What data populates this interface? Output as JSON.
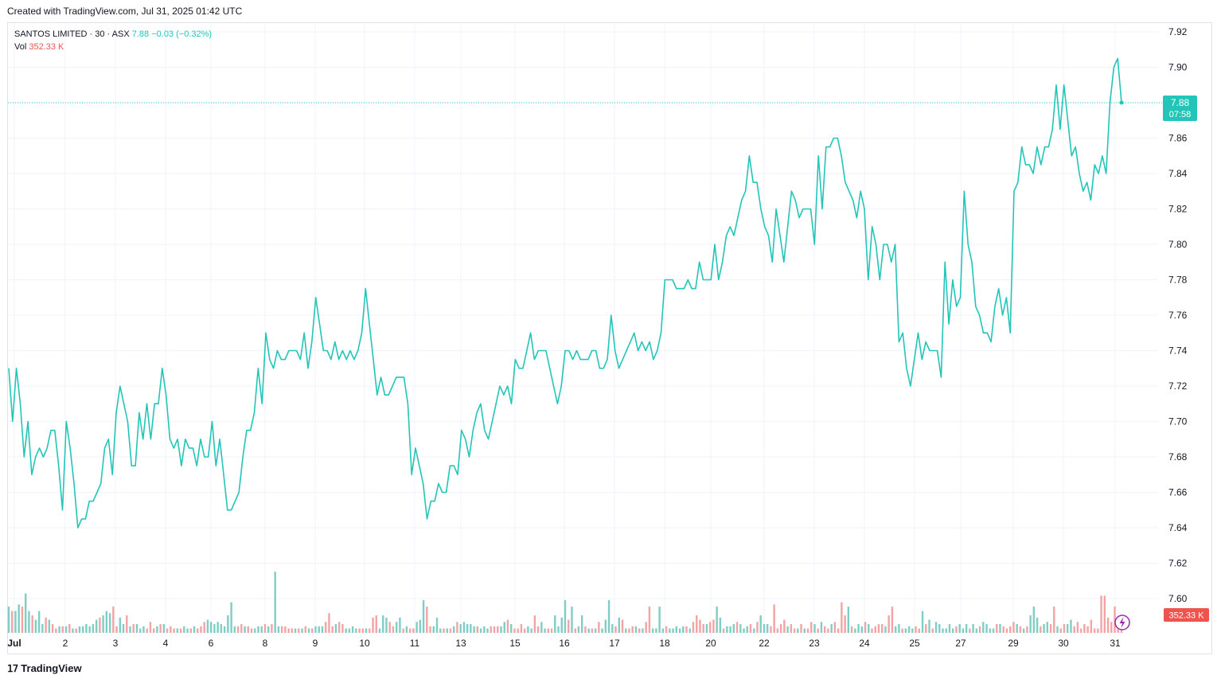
{
  "caption": "Created with TradingView.com, Jul 31, 2025 01:42 UTC",
  "legend": {
    "symbol": "SANTOS LIMITED · 30 · ASX",
    "last": "7.88",
    "change": "−0.03 (−0.32%)",
    "vol_label": "Vol",
    "vol_value": "352.33 K"
  },
  "price_badge": {
    "price": "7.88",
    "countdown": "07:58"
  },
  "vol_badge": "352.33 K",
  "footer": {
    "brand": "TradingView"
  },
  "colors": {
    "line": "#22c5b8",
    "vol_up": "#7fcdc4",
    "vol_down": "#f3a3a3",
    "grid": "#f0f3fa",
    "badge_vol": "#ef5350"
  },
  "chart_data": {
    "type": "line",
    "title": "SANTOS LIMITED · 30 · ASX",
    "ylim": [
      7.585,
      7.925
    ],
    "y_ticks": [
      "7.60",
      "7.62",
      "7.64",
      "7.66",
      "7.68",
      "7.70",
      "7.72",
      "7.74",
      "7.76",
      "7.78",
      "7.80",
      "7.82",
      "7.84",
      "7.86",
      "7.88",
      "7.90",
      "7.92"
    ],
    "x_labels": [
      "Jul",
      "2",
      "3",
      "4",
      "6",
      "8",
      "9",
      "10",
      "11",
      "13",
      "15",
      "16",
      "17",
      "18",
      "20",
      "22",
      "23",
      "24",
      "25",
      "27",
      "29",
      "30",
      "31"
    ],
    "last_price": 7.88,
    "series": [
      {
        "values": [
          7.73,
          7.7,
          7.73,
          7.71,
          7.68,
          7.7,
          7.67,
          7.68,
          7.685,
          7.68,
          7.685,
          7.695,
          7.695,
          7.675,
          7.65,
          7.7,
          7.685,
          7.665,
          7.64,
          7.645,
          7.645,
          7.655,
          7.655,
          7.66,
          7.665,
          7.685,
          7.69,
          7.67,
          7.705,
          7.72,
          7.71,
          7.7,
          7.675,
          7.675,
          7.705,
          7.69,
          7.71,
          7.69,
          7.71,
          7.71,
          7.73,
          7.715,
          7.69,
          7.685,
          7.69,
          7.675,
          7.69,
          7.685,
          7.685,
          7.675,
          7.69,
          7.68,
          7.68,
          7.7,
          7.675,
          7.69,
          7.67,
          7.65,
          7.65,
          7.655,
          7.66,
          7.68,
          7.695,
          7.695,
          7.705,
          7.73,
          7.71,
          7.75,
          7.735,
          7.73,
          7.74,
          7.735,
          7.735,
          7.74,
          7.74,
          7.74,
          7.735,
          7.75,
          7.73,
          7.745,
          7.77,
          7.755,
          7.74,
          7.74,
          7.735,
          7.745,
          7.735,
          7.74,
          7.735,
          7.74,
          7.735,
          7.74,
          7.75,
          7.775,
          7.755,
          7.735,
          7.715,
          7.725,
          7.715,
          7.715,
          7.72,
          7.725,
          7.725,
          7.725,
          7.71,
          7.67,
          7.685,
          7.675,
          7.665,
          7.645,
          7.655,
          7.655,
          7.665,
          7.66,
          7.66,
          7.675,
          7.675,
          7.67,
          7.695,
          7.69,
          7.68,
          7.695,
          7.705,
          7.71,
          7.695,
          7.69,
          7.7,
          7.71,
          7.72,
          7.715,
          7.72,
          7.71,
          7.735,
          7.73,
          7.73,
          7.74,
          7.75,
          7.735,
          7.74,
          7.74,
          7.74,
          7.73,
          7.72,
          7.71,
          7.72,
          7.74,
          7.74,
          7.735,
          7.74,
          7.735,
          7.735,
          7.735,
          7.74,
          7.74,
          7.73,
          7.73,
          7.735,
          7.76,
          7.74,
          7.73,
          7.735,
          7.74,
          7.745,
          7.75,
          7.74,
          7.745,
          7.74,
          7.745,
          7.735,
          7.74,
          7.75,
          7.78,
          7.78,
          7.78,
          7.775,
          7.775,
          7.775,
          7.78,
          7.775,
          7.775,
          7.79,
          7.78,
          7.78,
          7.78,
          7.8,
          7.78,
          7.79,
          7.805,
          7.81,
          7.805,
          7.815,
          7.825,
          7.83,
          7.85,
          7.835,
          7.835,
          7.82,
          7.81,
          7.805,
          7.79,
          7.82,
          7.805,
          7.79,
          7.81,
          7.83,
          7.825,
          7.815,
          7.82,
          7.82,
          7.82,
          7.8,
          7.85,
          7.82,
          7.855,
          7.855,
          7.86,
          7.86,
          7.85,
          7.835,
          7.83,
          7.825,
          7.815,
          7.83,
          7.82,
          7.78,
          7.81,
          7.8,
          7.78,
          7.8,
          7.8,
          7.79,
          7.8,
          7.745,
          7.75,
          7.73,
          7.72,
          7.735,
          7.75,
          7.735,
          7.745,
          7.74,
          7.74,
          7.74,
          7.725,
          7.79,
          7.755,
          7.78,
          7.765,
          7.77,
          7.83,
          7.8,
          7.79,
          7.765,
          7.76,
          7.75,
          7.75,
          7.745,
          7.765,
          7.775,
          7.76,
          7.77,
          7.75,
          7.83,
          7.835,
          7.855,
          7.845,
          7.845,
          7.84,
          7.855,
          7.845,
          7.855,
          7.855,
          7.865,
          7.89,
          7.865,
          7.89,
          7.87,
          7.85,
          7.855,
          7.84,
          7.83,
          7.835,
          7.825,
          7.845,
          7.84,
          7.85,
          7.84,
          7.88,
          7.9,
          7.905,
          7.88
        ]
      }
    ],
    "volume": {
      "ylim": [
        0,
        70
      ],
      "values": [
        12,
        10,
        10,
        13,
        12,
        18,
        10,
        8,
        6,
        10,
        4,
        7,
        6,
        4,
        2,
        3,
        3,
        3,
        4,
        2,
        2,
        3,
        3,
        4,
        3,
        4,
        6,
        7,
        8,
        10,
        9,
        12,
        3,
        7,
        4,
        8,
        3,
        4,
        4,
        2,
        3,
        2,
        5,
        2,
        3,
        4,
        4,
        2,
        3,
        2,
        2,
        2,
        3,
        2,
        2,
        3,
        2,
        3,
        5,
        6,
        5,
        4,
        5,
        4,
        3,
        8,
        14,
        3,
        3,
        4,
        3,
        3,
        2,
        2,
        3,
        3,
        4,
        3,
        4,
        28,
        3,
        3,
        3,
        2,
        2,
        2,
        2,
        2,
        3,
        2,
        2,
        3,
        3,
        3,
        5,
        9,
        3,
        4,
        5,
        4,
        2,
        2,
        3,
        2,
        2,
        2,
        2,
        2,
        7,
        8,
        2,
        8,
        7,
        5,
        3,
        5,
        7,
        2,
        3,
        2,
        2,
        5,
        6,
        15,
        12,
        3,
        3,
        7,
        2,
        2,
        2,
        2,
        3,
        5,
        4,
        5,
        4,
        4,
        3,
        3,
        2,
        3,
        2,
        3,
        3,
        3,
        3,
        5,
        6,
        4,
        2,
        2,
        4,
        2,
        3,
        2,
        8,
        3,
        5,
        2,
        2,
        2,
        8,
        3,
        7,
        15,
        6,
        12,
        2,
        3,
        8,
        3,
        2,
        2,
        2,
        5,
        2,
        6,
        15,
        4,
        3,
        7,
        6,
        2,
        2,
        3,
        3,
        2,
        2,
        5,
        12,
        2,
        2,
        12,
        2,
        3,
        2,
        2,
        3,
        2,
        3,
        3,
        2,
        5,
        8,
        6,
        4,
        4,
        5,
        6,
        12,
        7,
        2,
        3,
        3,
        4,
        5,
        4,
        2,
        3,
        4,
        2,
        5,
        8,
        4,
        4,
        3,
        13,
        2,
        4,
        6,
        3,
        4,
        2,
        2,
        4,
        2,
        2,
        5,
        4,
        2,
        5,
        3,
        2,
        4,
        5,
        2,
        14,
        8,
        12,
        3,
        2,
        4,
        3,
        5,
        4,
        2,
        3,
        4,
        4,
        3,
        8,
        12,
        3,
        4,
        2,
        2,
        3,
        2,
        3,
        2,
        10,
        4,
        6,
        2,
        5,
        4,
        2,
        2,
        4,
        2,
        3,
        4,
        2,
        4,
        2,
        4,
        2,
        3,
        5,
        4,
        2,
        2,
        4,
        4,
        3,
        2,
        3,
        5,
        4,
        3,
        2,
        3,
        8,
        12,
        7,
        3,
        4,
        5,
        4,
        12,
        3,
        2,
        4,
        4,
        6,
        3,
        5,
        2,
        4,
        3,
        6,
        2,
        2,
        17,
        17,
        7,
        5,
        12,
        4,
        5
      ],
      "up": [
        1,
        0,
        1,
        1,
        0,
        1,
        1,
        0,
        1,
        1,
        1,
        0,
        1,
        0,
        0,
        1,
        0,
        1,
        0,
        1,
        0,
        1,
        1,
        1,
        1,
        1,
        1,
        0,
        1,
        1,
        1,
        0,
        0,
        1,
        1,
        0,
        1,
        0,
        1,
        1,
        1,
        0,
        0,
        0,
        1,
        0,
        1,
        0,
        0,
        0,
        1,
        0,
        1,
        1,
        0,
        1,
        0,
        0,
        0,
        1,
        1,
        1,
        1,
        1,
        1,
        1,
        1,
        1,
        0,
        0,
        1,
        0,
        0,
        1,
        1,
        1,
        0,
        1,
        0,
        1,
        1,
        0,
        0,
        0,
        0,
        1,
        0,
        1,
        0,
        1,
        0,
        1,
        1,
        1,
        0,
        0,
        0,
        1,
        0,
        0,
        1,
        1,
        1,
        1,
        0,
        0,
        1,
        0,
        0,
        0,
        1,
        1,
        1,
        0,
        0,
        1,
        1,
        0,
        1,
        0,
        0,
        1,
        1,
        1,
        0,
        0,
        1,
        1,
        1,
        0,
        1,
        0,
        1,
        0,
        1,
        1,
        1,
        1,
        1,
        0,
        1,
        1,
        1,
        0,
        0,
        0,
        1,
        1,
        0,
        1,
        0,
        0,
        0,
        0,
        1,
        1,
        0,
        0,
        1,
        1,
        0,
        0,
        1,
        1,
        1,
        1,
        0,
        1,
        0,
        1,
        1,
        0,
        1,
        0,
        1,
        0,
        1,
        1,
        1,
        1,
        0,
        1,
        0,
        1,
        0,
        0,
        1,
        0,
        1,
        0,
        0,
        1,
        1,
        1,
        1,
        0,
        1,
        1,
        1,
        1,
        1,
        0,
        1,
        0,
        0,
        0,
        0,
        1,
        0,
        0,
        1,
        1,
        0,
        1,
        1,
        1,
        0,
        1,
        1,
        1,
        0,
        1,
        0,
        1,
        1,
        1,
        0,
        0,
        0,
        0,
        0,
        1,
        0,
        0,
        1,
        0,
        1,
        0,
        0,
        1,
        0,
        1,
        0,
        0,
        1,
        0,
        0,
        0,
        0,
        1,
        0,
        1,
        1,
        1,
        0,
        1,
        0,
        0,
        0,
        0,
        1,
        0,
        0,
        1,
        1,
        0,
        1,
        1,
        1,
        0,
        0,
        1,
        0,
        1,
        0,
        1,
        1,
        1,
        1,
        1,
        1,
        0,
        1,
        1,
        1,
        0,
        1,
        1,
        0,
        1,
        1,
        1,
        1,
        0,
        1,
        0,
        0,
        0,
        0,
        1,
        0,
        1,
        0,
        1,
        1,
        1,
        0,
        1,
        1,
        0,
        0,
        1,
        0,
        0,
        1,
        1,
        0
      ]
    }
  }
}
